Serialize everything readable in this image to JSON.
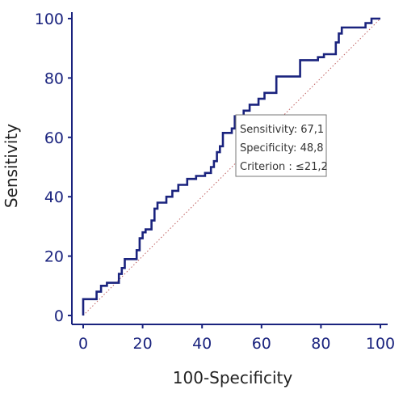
{
  "chart_data": {
    "type": "line",
    "xlabel": "100-Specificity",
    "ylabel": "Sensitivity",
    "xlim": [
      0,
      100
    ],
    "ylim": [
      0,
      100
    ],
    "x_ticks": [
      "0",
      "20",
      "40",
      "60",
      "80",
      "100"
    ],
    "y_ticks": [
      "0",
      "20",
      "40",
      "60",
      "80",
      "100"
    ],
    "colors": {
      "curve": "#1a237e",
      "reference": "#c06060",
      "axis": "#1a237e"
    },
    "series": [
      {
        "style": "step",
        "points": [
          [
            0,
            0
          ],
          [
            0,
            5.5
          ],
          [
            4.5,
            5.5
          ],
          [
            4.5,
            8
          ],
          [
            6,
            8
          ],
          [
            6,
            10
          ],
          [
            8,
            10
          ],
          [
            8,
            11
          ],
          [
            12,
            11
          ],
          [
            12,
            14
          ],
          [
            13,
            14
          ],
          [
            13,
            16
          ],
          [
            14,
            16
          ],
          [
            14,
            19
          ],
          [
            18,
            19
          ],
          [
            18,
            22
          ],
          [
            19,
            22
          ],
          [
            19,
            26
          ],
          [
            20,
            26
          ],
          [
            20,
            28
          ],
          [
            21,
            28
          ],
          [
            21,
            29
          ],
          [
            23,
            29
          ],
          [
            23,
            32
          ],
          [
            24,
            32
          ],
          [
            24,
            36
          ],
          [
            25,
            36
          ],
          [
            25,
            38
          ],
          [
            28,
            38
          ],
          [
            28,
            40
          ],
          [
            30,
            40
          ],
          [
            30,
            42
          ],
          [
            32,
            42
          ],
          [
            32,
            44
          ],
          [
            35,
            44
          ],
          [
            35,
            46
          ],
          [
            38,
            46
          ],
          [
            38,
            47
          ],
          [
            41,
            47
          ],
          [
            41,
            48
          ],
          [
            43,
            48
          ],
          [
            43,
            50
          ],
          [
            44,
            50
          ],
          [
            44,
            52
          ],
          [
            45,
            52
          ],
          [
            45,
            55
          ],
          [
            46,
            55
          ],
          [
            46,
            57
          ],
          [
            47,
            57
          ],
          [
            47,
            61.5
          ],
          [
            50,
            61.5
          ],
          [
            50,
            63
          ],
          [
            51,
            63
          ],
          [
            51,
            67.1
          ],
          [
            54,
            67.1
          ],
          [
            54,
            69
          ],
          [
            56,
            69
          ],
          [
            56,
            71
          ],
          [
            59,
            71
          ],
          [
            59,
            73
          ],
          [
            61,
            73
          ],
          [
            61,
            75
          ],
          [
            65,
            75
          ],
          [
            65,
            80.5
          ],
          [
            73,
            80.5
          ],
          [
            73,
            86
          ],
          [
            79,
            86
          ],
          [
            79,
            87
          ],
          [
            81,
            87
          ],
          [
            81,
            88
          ],
          [
            85,
            88
          ],
          [
            85,
            92
          ],
          [
            86,
            92
          ],
          [
            86,
            95
          ],
          [
            87,
            95
          ],
          [
            87,
            97
          ],
          [
            95,
            97
          ],
          [
            95,
            98.5
          ],
          [
            97,
            98.5
          ],
          [
            97,
            100
          ],
          [
            100,
            100
          ]
        ]
      },
      {
        "style": "reference",
        "points": [
          [
            0,
            0
          ],
          [
            100,
            100
          ]
        ]
      }
    ],
    "annotation": {
      "lines": [
        "Sensitivity: 67,1",
        "Specificity: 48,8",
        "Criterion : ≤21,2"
      ],
      "anchor_x": 51.2,
      "anchor_y": 67.1
    }
  }
}
